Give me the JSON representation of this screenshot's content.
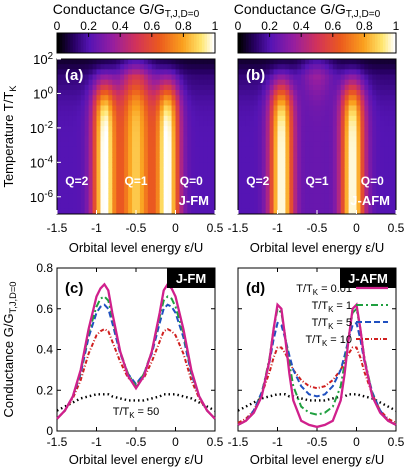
{
  "chart_data": [
    {
      "panel": "a",
      "type": "heatmap",
      "colorbar_label": "Conductance G/G",
      "colorbar_sub": "T,J,D=0",
      "colorbar_range": [
        0,
        1
      ],
      "colorbar_ticks": [
        "0",
        "0.2",
        "0.4",
        "0.6",
        "0.8",
        "1"
      ],
      "colormap": [
        "#000000",
        "#3a0aa0",
        "#7a1ec8",
        "#c0306a",
        "#e85a18",
        "#f8a020",
        "#fff090",
        "#ffffff"
      ],
      "label": "(a)",
      "tag": "J-FM",
      "xlabel": "Orbital level energy ε/U",
      "ylabel": "Temperature T/T",
      "ylabel_sub": "K",
      "xlim": [
        -1.5,
        0.5
      ],
      "ylim_log10": [
        -7,
        2
      ],
      "x_ticks": [
        "-1.5",
        "-1",
        "-0.5",
        "0",
        "0.5"
      ],
      "y_ticks": [
        {
          "base": "10",
          "exp": "2"
        },
        {
          "base": "10",
          "exp": "0"
        },
        {
          "base": "10",
          "exp": "-2"
        },
        {
          "base": "10",
          "exp": "-4"
        },
        {
          "base": "10",
          "exp": "-6"
        }
      ],
      "regions": [
        {
          "label": "Q=2",
          "x": -1.25
        },
        {
          "label": "Q=1",
          "x": -0.5
        },
        {
          "label": "Q=0",
          "x": 0.2
        }
      ],
      "peaks_x": [
        -0.9,
        -0.1
      ],
      "low_T_valley": 0.75
    },
    {
      "panel": "b",
      "type": "heatmap",
      "colorbar_label": "Conductance G/G",
      "colorbar_sub": "T,J,D=0",
      "colorbar_range": [
        0,
        1
      ],
      "colorbar_ticks": [
        "0",
        "0.2",
        "0.4",
        "0.6",
        "0.8",
        "1"
      ],
      "label": "(b)",
      "tag": "J-AFM",
      "xlabel": "Orbital level energy ε/U",
      "xlim": [
        -1.5,
        0.5
      ],
      "ylim_log10": [
        -7,
        2
      ],
      "x_ticks": [
        "-1.5",
        "-1",
        "-0.5",
        "0",
        "0.5"
      ],
      "regions": [
        {
          "label": "Q=2",
          "x": -1.25
        },
        {
          "label": "Q=1",
          "x": -0.5
        },
        {
          "label": "Q=0",
          "x": 0.2
        }
      ],
      "peaks_x": [
        -0.95,
        -0.05
      ],
      "low_T_valley": 0.05
    },
    {
      "panel": "c",
      "type": "line",
      "label": "(c)",
      "tag": "J-FM",
      "xlabel": "Orbital level energy ε/U",
      "ylabel": "Conductance G/G",
      "ylabel_sub": "T,J,D=0",
      "xlim": [
        -1.5,
        0.5
      ],
      "ylim": [
        0,
        0.8
      ],
      "x_ticks": [
        "-1.5",
        "-1",
        "-0.5",
        "0",
        "0.5"
      ],
      "y_ticks": [
        "0",
        "0.2",
        "0.4",
        "0.6",
        "0.8"
      ],
      "x": [
        -1.5,
        -1.4,
        -1.3,
        -1.2,
        -1.1,
        -1.0,
        -0.95,
        -0.9,
        -0.85,
        -0.8,
        -0.7,
        -0.6,
        -0.5,
        -0.4,
        -0.3,
        -0.2,
        -0.15,
        -0.1,
        -0.05,
        0.0,
        0.1,
        0.2,
        0.3,
        0.4,
        0.5
      ],
      "series": [
        {
          "key": "t001",
          "color": "#d0208c",
          "dash": "",
          "width": 2.3,
          "values": [
            0.06,
            0.1,
            0.17,
            0.3,
            0.5,
            0.66,
            0.7,
            0.72,
            0.69,
            0.58,
            0.39,
            0.27,
            0.21,
            0.27,
            0.39,
            0.58,
            0.69,
            0.72,
            0.7,
            0.66,
            0.5,
            0.3,
            0.17,
            0.1,
            0.06
          ]
        },
        {
          "key": "t1",
          "color": "#20a040",
          "dash": "7,3,2,3",
          "width": 2,
          "values": [
            0.06,
            0.1,
            0.17,
            0.29,
            0.48,
            0.61,
            0.65,
            0.66,
            0.64,
            0.56,
            0.39,
            0.28,
            0.22,
            0.28,
            0.39,
            0.56,
            0.64,
            0.66,
            0.65,
            0.61,
            0.48,
            0.29,
            0.17,
            0.1,
            0.06
          ]
        },
        {
          "key": "t5",
          "color": "#2050c0",
          "dash": "6,3",
          "width": 2,
          "values": [
            0.06,
            0.1,
            0.17,
            0.28,
            0.46,
            0.58,
            0.61,
            0.62,
            0.6,
            0.53,
            0.38,
            0.28,
            0.23,
            0.28,
            0.38,
            0.53,
            0.6,
            0.62,
            0.61,
            0.58,
            0.46,
            0.28,
            0.17,
            0.1,
            0.06
          ]
        },
        {
          "key": "t10",
          "color": "#d02020",
          "dash": "4,2,1,2",
          "width": 2,
          "values": [
            0.06,
            0.1,
            0.16,
            0.25,
            0.38,
            0.47,
            0.49,
            0.5,
            0.49,
            0.44,
            0.34,
            0.26,
            0.23,
            0.26,
            0.34,
            0.44,
            0.49,
            0.5,
            0.49,
            0.47,
            0.38,
            0.25,
            0.16,
            0.1,
            0.06
          ]
        },
        {
          "key": "t50",
          "color": "#000000",
          "dash": "1.5,3",
          "width": 2.4,
          "values": [
            0.1,
            0.12,
            0.14,
            0.16,
            0.17,
            0.18,
            0.18,
            0.18,
            0.18,
            0.17,
            0.16,
            0.15,
            0.15,
            0.15,
            0.16,
            0.17,
            0.18,
            0.18,
            0.18,
            0.18,
            0.17,
            0.16,
            0.14,
            0.12,
            0.1
          ]
        }
      ],
      "annotation": {
        "text": "T/T",
        "sub": "K",
        "tail": " = 50"
      }
    },
    {
      "panel": "d",
      "type": "line",
      "label": "(d)",
      "tag": "J-AFM",
      "xlabel": "Orbital level energy ε/U",
      "xlim": [
        -1.5,
        0.5
      ],
      "ylim": [
        0,
        0.8
      ],
      "x_ticks": [
        "-1.5",
        "-1",
        "-0.5",
        "0",
        "0.5"
      ],
      "x": [
        -1.5,
        -1.4,
        -1.3,
        -1.2,
        -1.1,
        -1.05,
        -1.0,
        -0.95,
        -0.9,
        -0.85,
        -0.8,
        -0.7,
        -0.6,
        -0.5,
        -0.4,
        -0.3,
        -0.2,
        -0.15,
        -0.1,
        -0.05,
        0.0,
        0.05,
        0.1,
        0.2,
        0.3,
        0.4,
        0.5
      ],
      "series": [
        {
          "key": "t001",
          "color": "#d0208c",
          "dash": "",
          "width": 2.3,
          "legend": "T/T",
          "legend_sub": "K",
          "legend_tail": " = 0.01",
          "values": [
            0.03,
            0.05,
            0.09,
            0.17,
            0.35,
            0.5,
            0.62,
            0.6,
            0.45,
            0.28,
            0.15,
            0.05,
            0.03,
            0.02,
            0.03,
            0.05,
            0.15,
            0.28,
            0.45,
            0.6,
            0.62,
            0.5,
            0.35,
            0.17,
            0.09,
            0.05,
            0.03
          ]
        },
        {
          "key": "t1",
          "color": "#20a040",
          "dash": "7,3,2,3",
          "width": 2,
          "legend": "T/T",
          "legend_sub": "K",
          "legend_tail": " = 1",
          "values": [
            0.03,
            0.05,
            0.09,
            0.18,
            0.36,
            0.5,
            0.6,
            0.58,
            0.46,
            0.33,
            0.22,
            0.12,
            0.09,
            0.08,
            0.09,
            0.12,
            0.22,
            0.33,
            0.46,
            0.58,
            0.6,
            0.5,
            0.36,
            0.18,
            0.09,
            0.05,
            0.03
          ]
        },
        {
          "key": "t5",
          "color": "#2050c0",
          "dash": "6,3",
          "width": 2,
          "legend": "T/T",
          "legend_sub": "K",
          "legend_tail": " = 5",
          "values": [
            0.03,
            0.05,
            0.1,
            0.19,
            0.34,
            0.45,
            0.53,
            0.52,
            0.45,
            0.37,
            0.3,
            0.22,
            0.18,
            0.17,
            0.18,
            0.22,
            0.3,
            0.37,
            0.45,
            0.52,
            0.53,
            0.45,
            0.34,
            0.19,
            0.1,
            0.05,
            0.03
          ]
        },
        {
          "key": "t10",
          "color": "#d02020",
          "dash": "4,2,1,2",
          "width": 2,
          "legend": "T/T",
          "legend_sub": "K",
          "legend_tail": " = 10",
          "values": [
            0.04,
            0.06,
            0.1,
            0.18,
            0.29,
            0.36,
            0.41,
            0.41,
            0.38,
            0.34,
            0.3,
            0.25,
            0.22,
            0.21,
            0.22,
            0.25,
            0.3,
            0.34,
            0.38,
            0.41,
            0.41,
            0.36,
            0.29,
            0.18,
            0.1,
            0.06,
            0.04
          ]
        },
        {
          "key": "t50",
          "color": "#000000",
          "dash": "1.5,3",
          "width": 2.4,
          "values": [
            0.1,
            0.12,
            0.14,
            0.16,
            0.17,
            0.175,
            0.18,
            0.18,
            0.18,
            0.17,
            0.17,
            0.16,
            0.15,
            0.15,
            0.15,
            0.16,
            0.17,
            0.17,
            0.18,
            0.18,
            0.18,
            0.175,
            0.17,
            0.16,
            0.14,
            0.12,
            0.1
          ]
        }
      ]
    }
  ]
}
